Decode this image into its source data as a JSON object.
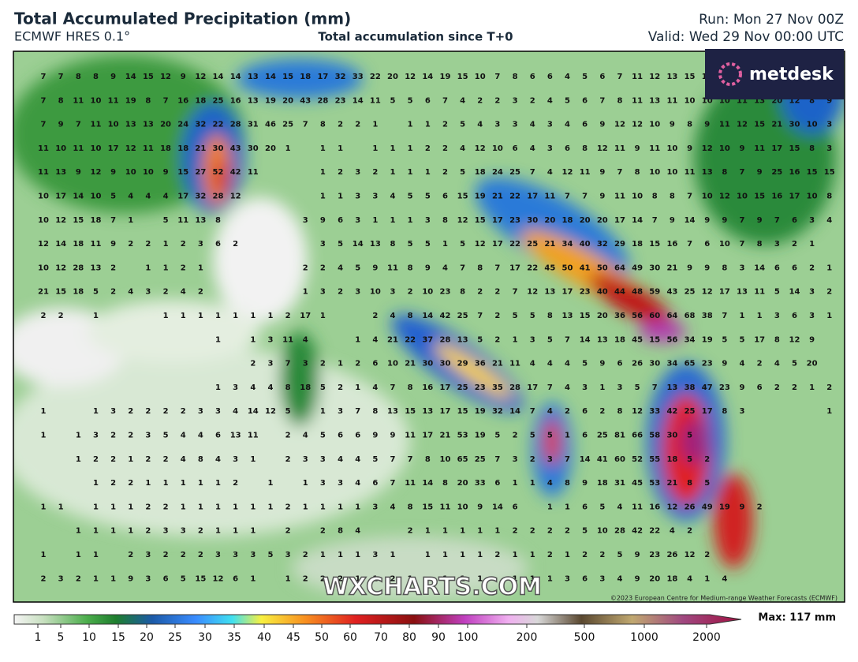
{
  "header": {
    "title": "Total Accumulated Precipitation (mm)",
    "model": "ECMWF HRES 0.1°",
    "subtitle": "Total accumulation since T+0",
    "run": "Run: Mon 27 Nov 00Z",
    "valid": "Valid: Wed 29 Nov 00:00 UTC"
  },
  "logo": "metdesk",
  "map": {
    "watermark": "WXCHARTS.COM",
    "copyright": "©2023 European Centre for Medium-range Weather Forecasts (ECMWF)",
    "grid": [
      [
        7,
        7,
        8,
        8,
        9,
        14,
        15,
        12,
        9,
        12,
        14,
        14,
        13,
        14,
        15,
        18,
        17,
        32,
        33,
        22,
        20,
        12,
        14,
        19,
        15,
        10,
        7,
        8,
        6,
        6,
        4,
        5,
        6,
        7,
        11,
        12,
        13,
        15,
        15,
        1
      ],
      [
        7,
        8,
        11,
        10,
        11,
        19,
        8,
        7,
        16,
        18,
        25,
        16,
        13,
        19,
        20,
        43,
        28,
        23,
        14,
        11,
        5,
        5,
        6,
        7,
        4,
        2,
        2,
        3,
        2,
        4,
        5,
        6,
        7,
        8,
        11,
        13,
        11,
        10,
        10,
        10,
        11,
        13,
        20,
        12,
        8,
        9
      ],
      [
        7,
        9,
        7,
        11,
        10,
        13,
        13,
        20,
        24,
        32,
        22,
        28,
        31,
        46,
        25,
        7,
        8,
        2,
        2,
        1,
        null,
        1,
        1,
        2,
        5,
        4,
        3,
        3,
        4,
        3,
        4,
        6,
        9,
        12,
        12,
        10,
        9,
        8,
        9,
        11,
        12,
        15,
        21,
        30,
        10,
        3
      ],
      [
        11,
        10,
        11,
        10,
        17,
        12,
        11,
        18,
        18,
        21,
        30,
        43,
        30,
        20,
        1,
        null,
        1,
        1,
        null,
        1,
        1,
        1,
        2,
        2,
        4,
        12,
        10,
        6,
        4,
        3,
        6,
        8,
        12,
        11,
        9,
        11,
        10,
        9,
        12,
        10,
        9,
        11,
        17,
        15,
        8,
        3
      ],
      [
        11,
        13,
        9,
        12,
        9,
        10,
        10,
        9,
        15,
        27,
        52,
        42,
        11,
        null,
        null,
        null,
        1,
        2,
        3,
        2,
        1,
        1,
        1,
        2,
        5,
        18,
        24,
        25,
        7,
        4,
        12,
        11,
        9,
        7,
        8,
        10,
        10,
        11,
        13,
        8,
        7,
        9,
        25,
        16,
        15,
        15
      ],
      [
        10,
        17,
        14,
        10,
        5,
        4,
        4,
        4,
        17,
        32,
        28,
        12,
        null,
        null,
        null,
        null,
        1,
        1,
        3,
        3,
        4,
        5,
        5,
        6,
        15,
        19,
        21,
        22,
        17,
        11,
        7,
        7,
        9,
        11,
        10,
        8,
        8,
        7,
        10,
        12,
        10,
        15,
        16,
        17,
        10,
        8
      ],
      [
        10,
        12,
        15,
        18,
        7,
        1,
        null,
        5,
        11,
        13,
        8,
        null,
        null,
        null,
        null,
        3,
        9,
        6,
        3,
        1,
        1,
        1,
        3,
        8,
        12,
        15,
        17,
        23,
        30,
        20,
        18,
        20,
        20,
        17,
        14,
        7,
        9,
        14,
        9,
        9,
        7,
        9,
        7,
        6,
        3,
        4
      ],
      [
        12,
        14,
        18,
        11,
        9,
        2,
        2,
        1,
        2,
        3,
        6,
        2,
        null,
        null,
        null,
        null,
        3,
        5,
        14,
        13,
        8,
        5,
        5,
        1,
        5,
        12,
        17,
        22,
        25,
        21,
        34,
        40,
        32,
        29,
        18,
        15,
        16,
        7,
        6,
        10,
        7,
        8,
        3,
        2,
        1
      ],
      [
        10,
        12,
        28,
        13,
        2,
        null,
        1,
        1,
        2,
        1,
        null,
        null,
        null,
        null,
        null,
        2,
        2,
        4,
        5,
        9,
        11,
        8,
        9,
        4,
        7,
        8,
        7,
        17,
        22,
        45,
        50,
        41,
        50,
        64,
        49,
        30,
        21,
        9,
        9,
        8,
        3,
        14,
        6,
        6,
        2,
        1
      ],
      [
        21,
        15,
        18,
        5,
        2,
        4,
        3,
        2,
        4,
        2,
        null,
        null,
        null,
        null,
        null,
        1,
        3,
        2,
        3,
        10,
        3,
        2,
        10,
        23,
        8,
        2,
        2,
        7,
        12,
        13,
        17,
        23,
        40,
        44,
        48,
        59,
        43,
        25,
        12,
        17,
        13,
        11,
        5,
        14,
        3,
        2
      ],
      [
        2,
        2,
        null,
        1,
        null,
        null,
        null,
        1,
        1,
        1,
        1,
        1,
        1,
        1,
        2,
        17,
        1,
        null,
        null,
        2,
        4,
        8,
        14,
        42,
        25,
        7,
        2,
        5,
        5,
        8,
        13,
        15,
        20,
        36,
        56,
        60,
        64,
        68,
        38,
        7,
        1,
        1,
        3,
        6,
        3,
        1
      ],
      [
        null,
        null,
        null,
        null,
        null,
        null,
        null,
        null,
        null,
        null,
        1,
        null,
        1,
        3,
        11,
        4,
        null,
        null,
        1,
        4,
        21,
        22,
        37,
        28,
        13,
        5,
        2,
        1,
        3,
        5,
        7,
        14,
        13,
        18,
        45,
        15,
        56,
        34,
        19,
        5,
        5,
        17,
        8,
        12,
        9
      ],
      [
        null,
        null,
        null,
        null,
        null,
        null,
        null,
        null,
        null,
        null,
        null,
        null,
        2,
        3,
        7,
        3,
        2,
        1,
        2,
        6,
        10,
        21,
        30,
        30,
        29,
        36,
        21,
        11,
        4,
        4,
        4,
        5,
        9,
        6,
        26,
        30,
        34,
        65,
        23,
        9,
        4,
        2,
        4,
        5,
        20
      ],
      [
        null,
        null,
        null,
        null,
        null,
        null,
        null,
        null,
        null,
        null,
        1,
        3,
        4,
        4,
        8,
        18,
        5,
        2,
        1,
        4,
        7,
        8,
        16,
        17,
        25,
        23,
        35,
        28,
        17,
        7,
        4,
        3,
        1,
        3,
        5,
        7,
        13,
        38,
        47,
        23,
        9,
        6,
        2,
        2,
        1,
        2
      ],
      [
        1,
        null,
        null,
        1,
        3,
        2,
        2,
        2,
        2,
        3,
        3,
        4,
        14,
        12,
        5,
        null,
        1,
        3,
        7,
        8,
        13,
        15,
        13,
        17,
        15,
        19,
        32,
        14,
        7,
        4,
        2,
        6,
        2,
        8,
        12,
        33,
        42,
        25,
        17,
        8,
        3,
        null,
        null,
        null,
        null,
        1
      ],
      [
        1,
        null,
        1,
        3,
        2,
        2,
        3,
        5,
        4,
        4,
        6,
        13,
        11,
        null,
        2,
        4,
        5,
        6,
        6,
        9,
        9,
        11,
        17,
        21,
        53,
        19,
        5,
        2,
        5,
        5,
        1,
        6,
        25,
        81,
        66,
        58,
        30,
        5
      ],
      [
        null,
        null,
        1,
        2,
        2,
        1,
        2,
        2,
        4,
        8,
        4,
        3,
        1,
        null,
        2,
        3,
        3,
        4,
        4,
        5,
        7,
        7,
        8,
        10,
        65,
        25,
        7,
        3,
        2,
        3,
        7,
        14,
        41,
        60,
        52,
        55,
        18,
        5,
        2
      ],
      [
        null,
        null,
        null,
        1,
        2,
        2,
        1,
        1,
        1,
        1,
        1,
        2,
        null,
        1,
        null,
        1,
        3,
        3,
        4,
        6,
        7,
        11,
        14,
        8,
        20,
        33,
        6,
        1,
        1,
        4,
        8,
        9,
        18,
        31,
        45,
        53,
        21,
        8,
        5
      ],
      [
        1,
        1,
        null,
        1,
        1,
        1,
        2,
        2,
        1,
        1,
        1,
        1,
        1,
        1,
        2,
        1,
        1,
        1,
        1,
        3,
        4,
        8,
        15,
        11,
        10,
        9,
        14,
        6,
        null,
        1,
        1,
        6,
        5,
        4,
        11,
        16,
        12,
        26,
        49,
        19,
        9,
        2
      ],
      [
        null,
        null,
        1,
        1,
        1,
        1,
        2,
        3,
        3,
        2,
        1,
        1,
        1,
        null,
        2,
        null,
        2,
        8,
        4,
        null,
        null,
        2,
        1,
        1,
        1,
        1,
        1,
        2,
        2,
        2,
        2,
        5,
        10,
        28,
        42,
        22,
        4,
        2
      ],
      [
        1,
        null,
        1,
        1,
        null,
        2,
        3,
        2,
        2,
        2,
        3,
        3,
        3,
        5,
        3,
        2,
        1,
        1,
        1,
        3,
        1,
        null,
        1,
        1,
        1,
        1,
        2,
        1,
        1,
        2,
        1,
        2,
        2,
        5,
        9,
        23,
        26,
        12,
        2
      ],
      [
        2,
        3,
        2,
        1,
        1,
        9,
        3,
        6,
        5,
        15,
        12,
        6,
        1,
        null,
        1,
        2,
        2,
        2,
        1,
        1,
        2,
        1,
        null,
        1,
        1,
        1,
        null,
        1,
        1,
        1,
        3,
        6,
        3,
        4,
        9,
        20,
        18,
        4,
        1,
        4
      ]
    ]
  },
  "colorbar": {
    "ticks": [
      1,
      5,
      10,
      15,
      20,
      25,
      30,
      35,
      40,
      45,
      50,
      60,
      70,
      80,
      90,
      100,
      200,
      500,
      1000,
      2000
    ],
    "max": "Max: 117 mm"
  }
}
